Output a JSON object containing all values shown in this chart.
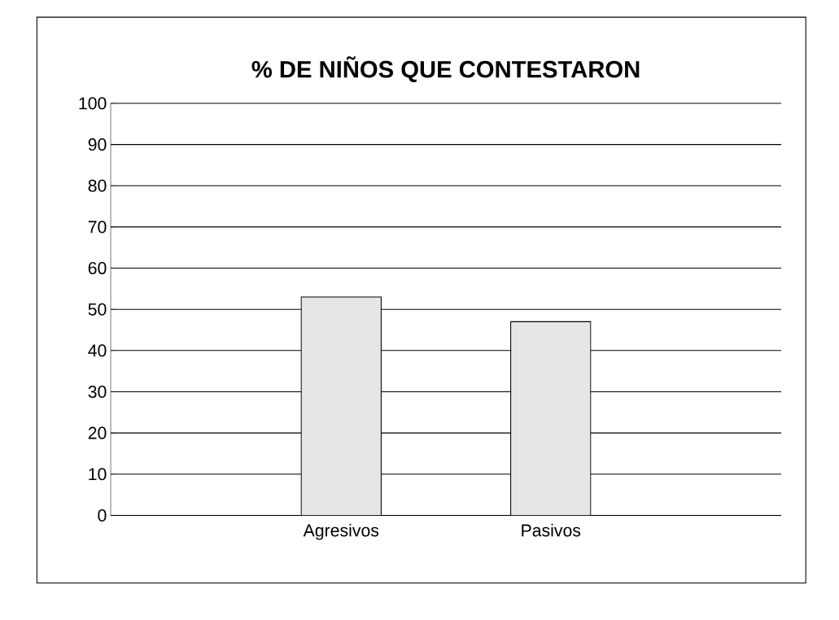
{
  "chart_data": {
    "type": "bar",
    "title": "% DE NIÑOS QUE CONTESTARON",
    "categories": [
      "Agresivos",
      "Pasivos"
    ],
    "values": [
      53,
      47
    ],
    "color": "#e6e6e6",
    "ylim": [
      0,
      100
    ],
    "yticks": [
      0,
      10,
      20,
      30,
      40,
      50,
      60,
      70,
      80,
      90,
      100
    ],
    "grid": "y"
  }
}
